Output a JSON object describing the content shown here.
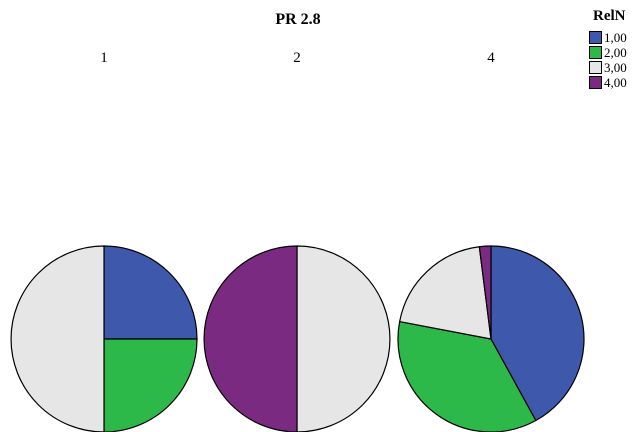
{
  "chart_data": {
    "type": "pie",
    "title": "PR 2.8",
    "legend_title": "RelN",
    "legend_position": "top-right",
    "categories": [
      "1,00",
      "2,00",
      "3,00",
      "4,00"
    ],
    "colors": [
      "#3e58ac",
      "#2db84a",
      "#e6e6e6",
      "#7b2a81"
    ],
    "panels": [
      {
        "label": "1",
        "values": [
          25,
          25,
          50,
          0
        ]
      },
      {
        "label": "2",
        "values": [
          0,
          0,
          50,
          50
        ]
      },
      {
        "label": "4",
        "values": [
          42,
          36,
          20,
          2
        ]
      }
    ]
  }
}
